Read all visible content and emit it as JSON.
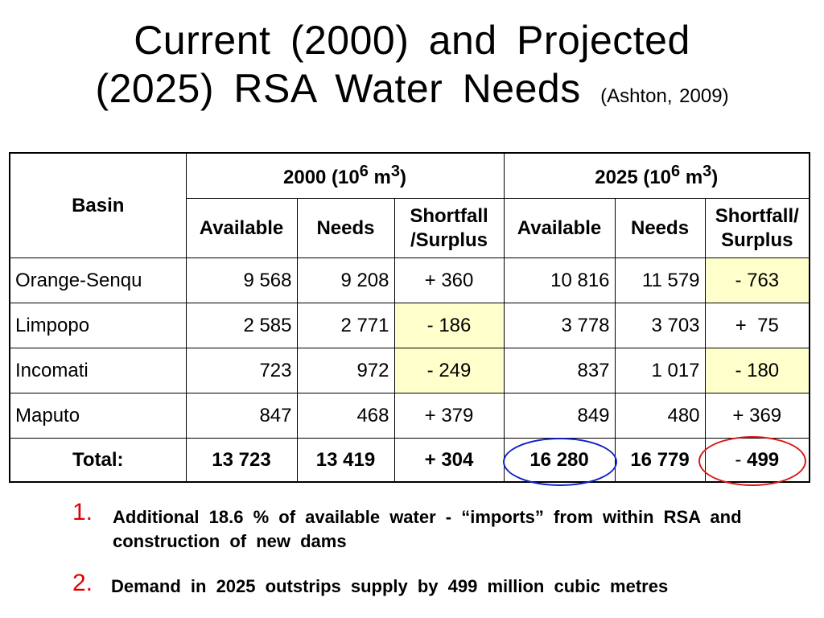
{
  "title": {
    "line1": "Current  (2000)  and  Projected",
    "line2": "(2025)  RSA  Water  Needs",
    "citation": "(Ashton, 2009)"
  },
  "table": {
    "basin_header": "Basin",
    "group_2000": "2000  (10",
    "group_2025": "2025  (10",
    "group_exp": "6",
    "group_unit": " m",
    "group_unit_exp": "3",
    "group_close": ")",
    "col_available": "Available",
    "col_needs": "Needs",
    "col_shortfall_2000_a": "Shortfall",
    "col_shortfall_2000_b": "/Surplus",
    "col_shortfall_2025_a": "Shortfall/",
    "col_shortfall_2025_b": "Surplus",
    "rows": [
      {
        "basin": "Orange-Senqu",
        "a2000": "9 568",
        "n2000": "9 208",
        "s2000": "+ 360",
        "a2025": "10 816",
        "n2025": "11 579",
        "s2025": "- 763"
      },
      {
        "basin": "Limpopo",
        "a2000": "2 585",
        "n2000": "2 771",
        "s2000": "- 186",
        "a2025": "3 778",
        "n2025": "3 703",
        "s2025": "+  75"
      },
      {
        "basin": "Incomati",
        "a2000": "723",
        "n2000": "972",
        "s2000": "- 249",
        "a2025": "837",
        "n2025": "1 017",
        "s2025": "- 180"
      },
      {
        "basin": "Maputo",
        "a2000": "847",
        "n2000": "468",
        "s2000": "+ 379",
        "a2025": "849",
        "n2025": "480",
        "s2025": "+ 369"
      }
    ],
    "total": {
      "label": "Total:",
      "a2000": "13 723",
      "n2000": "13 419",
      "s2000": "+ 304",
      "a2025": "16 280",
      "n2025": "16 779",
      "s2025_sign": "- ",
      "s2025_val": "499"
    },
    "highlight_color": "#ffffcc"
  },
  "notes": [
    {
      "number": "1.",
      "text": "Additional  18.6 %  of  available  water  -  “imports”  from  within  RSA  and  construction  of  new  dams"
    },
    {
      "number": "2.",
      "text": "Demand  in  2025  outstrips  supply  by  499 million  cubic  metres"
    }
  ],
  "colors": {
    "note_number": "#e00000",
    "blue_ring": "#1020c8",
    "red_ring": "#d81818"
  }
}
